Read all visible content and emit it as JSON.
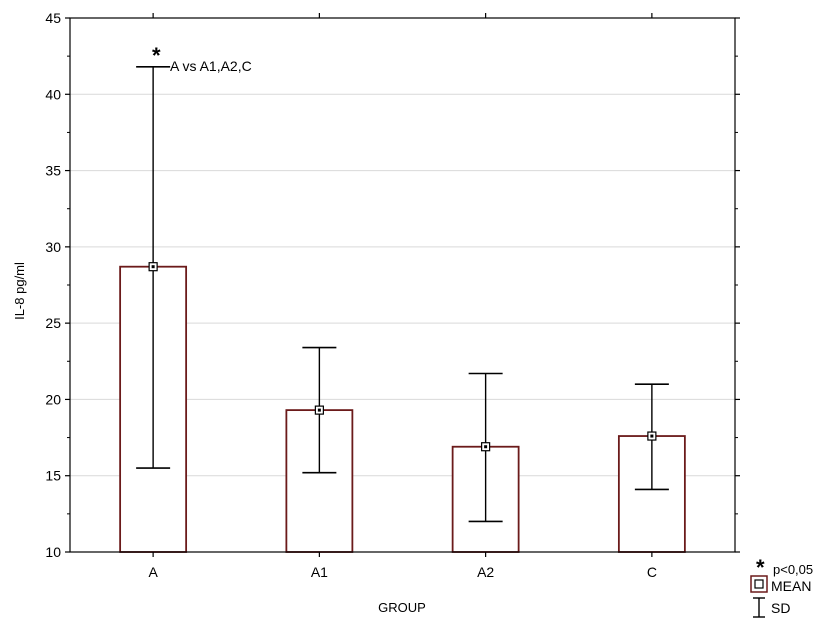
{
  "chart_data": {
    "type": "bar",
    "title": "",
    "xlabel": "GROUP",
    "ylabel": "IL-8 pg/ml",
    "ylim": [
      10,
      45
    ],
    "yticks": [
      10,
      15,
      20,
      25,
      30,
      35,
      40,
      45
    ],
    "grid": true,
    "categories": [
      "A",
      "A1",
      "A2",
      "C"
    ],
    "series": [
      {
        "name": "MEAN",
        "values": [
          28.7,
          19.3,
          16.9,
          17.6
        ]
      }
    ],
    "error_bars": {
      "name": "SD",
      "lower": [
        15.5,
        15.2,
        12.0,
        14.1
      ],
      "upper": [
        41.8,
        23.4,
        21.7,
        21.0
      ]
    },
    "annotation": {
      "marker": "*",
      "text": "A vs A1,A2,C",
      "category": "A"
    },
    "legend": {
      "position": "bottom-right",
      "star": "*",
      "significance": "p<0,05",
      "mean_label": "MEAN",
      "sd_label": "SD"
    },
    "colors": {
      "bar_stroke": "#6b1a1a",
      "bar_fill": "#ffffff",
      "grid": "#d9d9d9",
      "axis": "#000000"
    }
  }
}
